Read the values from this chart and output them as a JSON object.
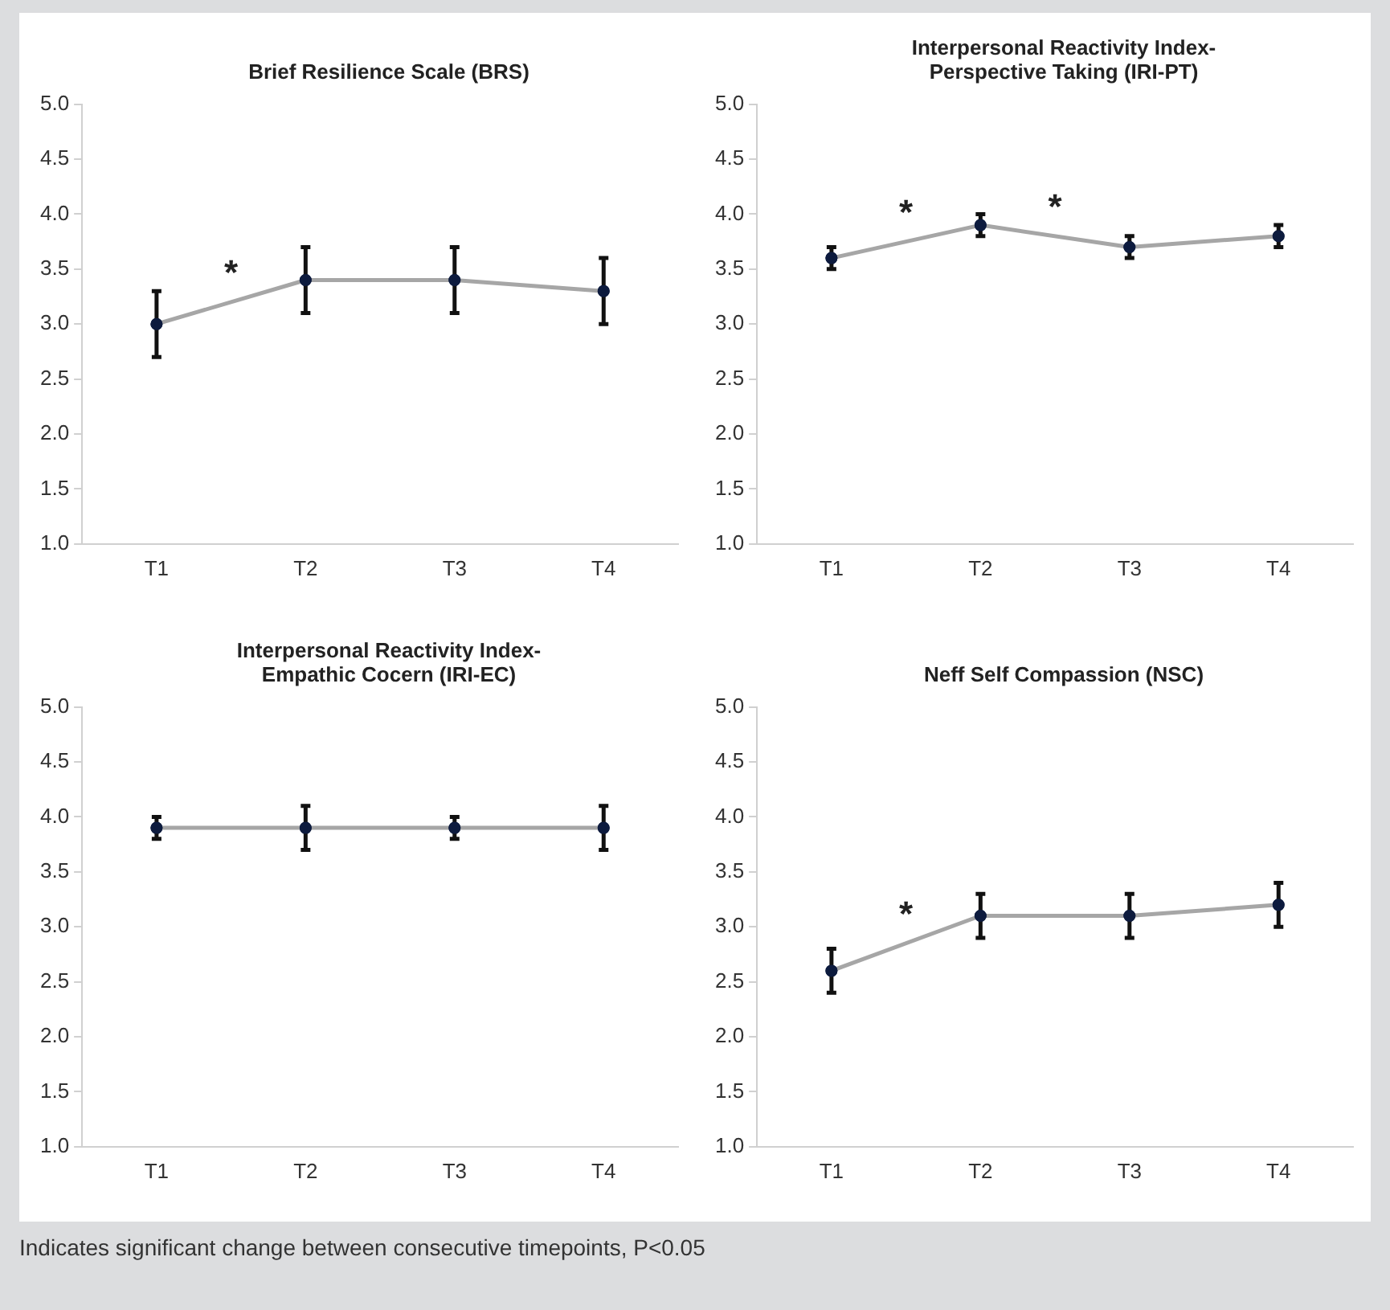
{
  "chart_data": [
    {
      "type": "line",
      "title": "Brief Resilience Scale (BRS)",
      "categories": [
        "T1",
        "T2",
        "T3",
        "T4"
      ],
      "series": [
        {
          "color": "#a6a6a6",
          "values": [
            3.0,
            3.4,
            3.4,
            3.3
          ],
          "errors": [
            0.3,
            0.3,
            0.3,
            0.3
          ]
        }
      ],
      "ylim": [
        1.0,
        5.0
      ],
      "yticks": [
        {
          "value": 1,
          "label": "1.0"
        },
        {
          "value": 1.5,
          "label": "1.5"
        },
        {
          "value": 2,
          "label": "2.0"
        },
        {
          "value": 2.5,
          "label": "2.5"
        },
        {
          "value": 3,
          "label": "3.0"
        },
        {
          "value": 3.5,
          "label": "3.5"
        },
        {
          "value": 4,
          "label": "4.0"
        },
        {
          "value": 4.5,
          "label": "4.5"
        },
        {
          "value": 5,
          "label": "5.0"
        }
      ],
      "grid": false,
      "legend": false,
      "marker": "circle",
      "line_style": "solid",
      "annotations": [
        "*"
      ]
    },
    {
      "type": "line",
      "title": "Interpersonal Reactivity Index-Perspective Taking (IRI-PT)",
      "categories": [
        "T1",
        "T2",
        "T3",
        "T4"
      ],
      "series": [
        {
          "color": "#a6a6a6",
          "values": [
            3.6,
            3.9,
            3.7,
            3.8
          ],
          "errors": [
            0.1,
            0.1,
            0.1,
            0.1
          ]
        }
      ],
      "ylim": [
        1.0,
        5.0
      ],
      "yticks": [
        {
          "value": 1,
          "label": "1.0"
        },
        {
          "value": 1.5,
          "label": "1.5"
        },
        {
          "value": 2,
          "label": "2.0"
        },
        {
          "value": 2.5,
          "label": "2.5"
        },
        {
          "value": 3,
          "label": "3.0"
        },
        {
          "value": 3.5,
          "label": "3.5"
        },
        {
          "value": 4,
          "label": "4.0"
        },
        {
          "value": 4.5,
          "label": "4.5"
        },
        {
          "value": 5,
          "label": "5.0"
        }
      ],
      "grid": false,
      "legend": false,
      "marker": "circle",
      "line_style": "solid",
      "annotations": [
        "*",
        "*"
      ]
    },
    {
      "type": "line",
      "title": "Interpersonal Reactivity Index-Empathic Cocern (IRI-EC)",
      "categories": [
        "T1",
        "T2",
        "T3",
        "T4"
      ],
      "series": [
        {
          "color": "#a6a6a6",
          "values": [
            3.9,
            3.9,
            3.9,
            3.9
          ],
          "errors": [
            0.1,
            0.2,
            0.1,
            0.2
          ]
        }
      ],
      "ylim": [
        1.0,
        5.0
      ],
      "yticks": [
        {
          "value": 1,
          "label": "1.0"
        },
        {
          "value": 1.5,
          "label": "1.5"
        },
        {
          "value": 2,
          "label": "2.0"
        },
        {
          "value": 2.5,
          "label": "2.5"
        },
        {
          "value": 3,
          "label": "3.0"
        },
        {
          "value": 3.5,
          "label": "3.5"
        },
        {
          "value": 4,
          "label": "4.0"
        },
        {
          "value": 4.5,
          "label": "4.5"
        },
        {
          "value": 5,
          "label": "5.0"
        }
      ],
      "grid": false,
      "legend": false,
      "marker": "circle",
      "line_style": "solid"
    },
    {
      "type": "line",
      "title": "Neff Self Compassion (NSC)",
      "categories": [
        "T1",
        "T2",
        "T3",
        "T4"
      ],
      "series": [
        {
          "color": "#a6a6a6",
          "values": [
            2.6,
            3.1,
            3.1,
            3.2
          ],
          "errors": [
            0.2,
            0.2,
            0.2,
            0.2
          ]
        }
      ],
      "ylim": [
        1.0,
        5.0
      ],
      "yticks": [
        {
          "value": 1,
          "label": "1.0"
        },
        {
          "value": 1.5,
          "label": "1.5"
        },
        {
          "value": 2,
          "label": "2.0"
        },
        {
          "value": 2.5,
          "label": "2.5"
        },
        {
          "value": 3,
          "label": "3.0"
        },
        {
          "value": 3.5,
          "label": "3.5"
        },
        {
          "value": 4,
          "label": "4.0"
        },
        {
          "value": 4.5,
          "label": "4.5"
        },
        {
          "value": 5,
          "label": "5.0"
        }
      ],
      "grid": false,
      "legend": false,
      "marker": "circle",
      "line_style": "solid",
      "annotations": [
        "*",
        "Indicates significant change between consecutive timepoints, P<0.05"
      ]
    }
  ]
}
